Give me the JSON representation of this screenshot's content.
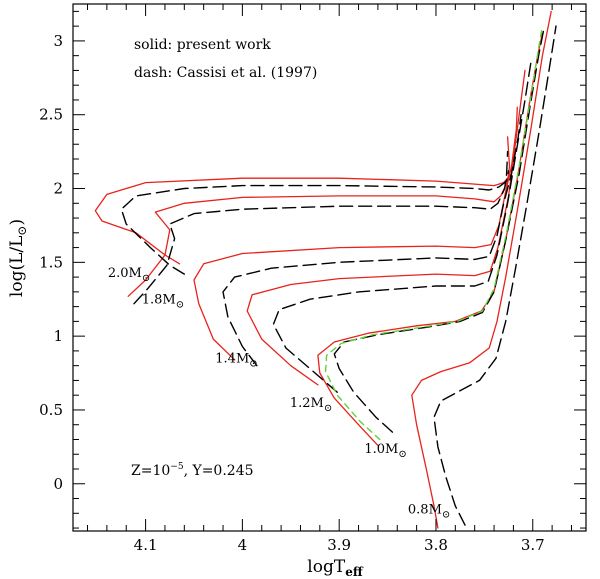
{
  "chart_data": {
    "type": "line",
    "title": "",
    "xlabel": "logT",
    "xlabel_sub": "eff",
    "ylabel": "log(L/L",
    "ylabel_sub": "⊙",
    "xlim": [
      4.175,
      3.645
    ],
    "ylim": [
      -0.32,
      3.25
    ],
    "x_reversed": true,
    "grid": false,
    "xticks": [
      {
        "value": 4.1,
        "label": "4.1"
      },
      {
        "value": 4.0,
        "label": "4"
      },
      {
        "value": 3.9,
        "label": "3.9"
      },
      {
        "value": 3.8,
        "label": "3.8"
      },
      {
        "value": 3.7,
        "label": "3.7"
      }
    ],
    "yticks": [
      {
        "value": 0,
        "label": "0"
      },
      {
        "value": 0.5,
        "label": "0.5"
      },
      {
        "value": 1,
        "label": "1"
      },
      {
        "value": 1.5,
        "label": "1.5"
      },
      {
        "value": 2,
        "label": "2"
      },
      {
        "value": 2.5,
        "label": "2.5"
      },
      {
        "value": 3,
        "label": "3"
      }
    ],
    "legend": {
      "solid": "solid: present work",
      "dash": "dash: Cassisi et al. (1997)"
    },
    "composition": "Z=10",
    "composition_exp": "−5",
    "composition_rest": ", Y=0.245",
    "series": [
      {
        "name": "2.0M (present work)",
        "style": "solid",
        "color": "#e8231c",
        "points": [
          [
            4.065,
            1.49
          ],
          [
            4.08,
            1.55
          ],
          [
            4.11,
            1.7
          ],
          [
            4.145,
            1.78
          ],
          [
            4.152,
            1.85
          ],
          [
            4.14,
            1.96
          ],
          [
            4.1,
            2.04
          ],
          [
            4.0,
            2.07
          ],
          [
            3.9,
            2.07
          ],
          [
            3.8,
            2.05
          ],
          [
            3.76,
            2.03
          ],
          [
            3.74,
            2.02
          ],
          [
            3.73,
            2.04
          ],
          [
            3.722,
            2.1
          ],
          [
            3.72,
            2.2
          ]
        ]
      },
      {
        "name": "1.8M (present work)",
        "style": "solid",
        "color": "#e8231c",
        "points": [
          [
            4.118,
            1.27
          ],
          [
            4.1,
            1.38
          ],
          [
            4.08,
            1.55
          ],
          [
            4.075,
            1.72
          ],
          [
            4.09,
            1.84
          ],
          [
            4.06,
            1.9
          ],
          [
            4.0,
            1.94
          ],
          [
            3.9,
            1.95
          ],
          [
            3.8,
            1.95
          ],
          [
            3.76,
            1.93
          ],
          [
            3.74,
            1.91
          ],
          [
            3.733,
            1.95
          ],
          [
            3.726,
            2.05
          ],
          [
            3.724,
            2.15
          ],
          [
            3.726,
            2.35
          ]
        ]
      },
      {
        "name": "1.4M (present work)",
        "style": "solid",
        "color": "#e8231c",
        "points": [
          [
            4.008,
            0.84
          ],
          [
            4.03,
            0.98
          ],
          [
            4.045,
            1.22
          ],
          [
            4.05,
            1.38
          ],
          [
            4.04,
            1.49
          ],
          [
            4.0,
            1.56
          ],
          [
            3.9,
            1.6
          ],
          [
            3.8,
            1.61
          ],
          [
            3.76,
            1.6
          ],
          [
            3.743,
            1.62
          ],
          [
            3.735,
            1.75
          ],
          [
            3.728,
            1.98
          ],
          [
            3.722,
            2.15
          ],
          [
            3.717,
            2.4
          ],
          [
            3.716,
            2.55
          ]
        ]
      },
      {
        "name": "1.2M (present work)",
        "style": "solid",
        "color": "#e8231c",
        "points": [
          [
            3.922,
            0.67
          ],
          [
            3.95,
            0.8
          ],
          [
            3.98,
            0.98
          ],
          [
            3.995,
            1.17
          ],
          [
            3.99,
            1.28
          ],
          [
            3.95,
            1.35
          ],
          [
            3.9,
            1.39
          ],
          [
            3.8,
            1.42
          ],
          [
            3.76,
            1.41
          ],
          [
            3.744,
            1.44
          ],
          [
            3.736,
            1.6
          ],
          [
            3.725,
            1.95
          ],
          [
            3.718,
            2.3
          ],
          [
            3.712,
            2.6
          ],
          [
            3.708,
            2.8
          ]
        ]
      },
      {
        "name": "1.0M (present work)",
        "style": "solid",
        "color": "#e8231c",
        "points": [
          [
            3.86,
            0.26
          ],
          [
            3.88,
            0.4
          ],
          [
            3.905,
            0.58
          ],
          [
            3.92,
            0.75
          ],
          [
            3.922,
            0.87
          ],
          [
            3.905,
            0.96
          ],
          [
            3.87,
            1.02
          ],
          [
            3.82,
            1.07
          ],
          [
            3.78,
            1.1
          ],
          [
            3.753,
            1.17
          ],
          [
            3.74,
            1.3
          ],
          [
            3.728,
            1.65
          ],
          [
            3.715,
            2.1
          ],
          [
            3.703,
            2.6
          ],
          [
            3.695,
            2.9
          ],
          [
            3.69,
            3.05
          ]
        ]
      },
      {
        "name": "0.8M (present work)",
        "style": "solid",
        "color": "#e8231c",
        "points": [
          [
            3.798,
            -0.3
          ],
          [
            3.802,
            -0.15
          ],
          [
            3.81,
            0.1
          ],
          [
            3.82,
            0.4
          ],
          [
            3.825,
            0.6
          ],
          [
            3.815,
            0.7
          ],
          [
            3.795,
            0.76
          ],
          [
            3.765,
            0.82
          ],
          [
            3.745,
            0.92
          ],
          [
            3.737,
            1.1
          ],
          [
            3.728,
            1.4
          ],
          [
            3.716,
            1.85
          ],
          [
            3.702,
            2.4
          ],
          [
            3.69,
            2.9
          ],
          [
            3.681,
            3.2
          ]
        ]
      },
      {
        "name": "2.0M (Cassisi et al. 1997)",
        "style": "dash",
        "color": "#000000",
        "points": [
          [
            4.06,
            1.42
          ],
          [
            4.075,
            1.48
          ],
          [
            4.095,
            1.6
          ],
          [
            4.12,
            1.76
          ],
          [
            4.125,
            1.86
          ],
          [
            4.11,
            1.95
          ],
          [
            4.06,
            2.0
          ],
          [
            4.0,
            2.02
          ],
          [
            3.9,
            2.02
          ],
          [
            3.8,
            2.01
          ],
          [
            3.76,
            2.0
          ],
          [
            3.745,
            1.99
          ],
          [
            3.735,
            2.01
          ],
          [
            3.727,
            2.05
          ],
          [
            3.725,
            2.12
          ]
        ]
      },
      {
        "name": "1.8M (Cassisi et al. 1997)",
        "style": "dash",
        "color": "#000000",
        "points": [
          [
            4.112,
            1.22
          ],
          [
            4.098,
            1.32
          ],
          [
            4.078,
            1.48
          ],
          [
            4.07,
            1.66
          ],
          [
            4.075,
            1.76
          ],
          [
            4.05,
            1.83
          ],
          [
            4.0,
            1.86
          ],
          [
            3.9,
            1.88
          ],
          [
            3.8,
            1.88
          ],
          [
            3.76,
            1.87
          ],
          [
            3.744,
            1.86
          ],
          [
            3.736,
            1.9
          ],
          [
            3.729,
            2.0
          ],
          [
            3.727,
            2.1
          ],
          [
            3.726,
            2.25
          ]
        ]
      },
      {
        "name": "1.4M (Cassisi et al. 1997)",
        "style": "dash",
        "color": "#000000",
        "points": [
          [
            3.985,
            0.8
          ],
          [
            4.0,
            0.93
          ],
          [
            4.015,
            1.13
          ],
          [
            4.02,
            1.3
          ],
          [
            4.008,
            1.4
          ],
          [
            3.97,
            1.46
          ],
          [
            3.9,
            1.5
          ],
          [
            3.8,
            1.53
          ],
          [
            3.76,
            1.52
          ],
          [
            3.745,
            1.54
          ],
          [
            3.737,
            1.68
          ],
          [
            3.73,
            1.9
          ],
          [
            3.722,
            2.1
          ],
          [
            3.715,
            2.35
          ],
          [
            3.712,
            2.5
          ]
        ]
      },
      {
        "name": "1.2M (Cassisi et al. 1997)",
        "style": "dash",
        "color": "#000000",
        "points": [
          [
            3.902,
            0.62
          ],
          [
            3.925,
            0.75
          ],
          [
            3.955,
            0.92
          ],
          [
            3.968,
            1.08
          ],
          [
            3.962,
            1.18
          ],
          [
            3.93,
            1.25
          ],
          [
            3.88,
            1.3
          ],
          [
            3.8,
            1.34
          ],
          [
            3.76,
            1.34
          ],
          [
            3.746,
            1.37
          ],
          [
            3.737,
            1.55
          ],
          [
            3.726,
            1.9
          ],
          [
            3.717,
            2.25
          ],
          [
            3.708,
            2.6
          ],
          [
            3.702,
            2.85
          ]
        ]
      },
      {
        "name": "1.0M (Cassisi et al. 1997)",
        "style": "dash",
        "color": "#000000",
        "points": [
          [
            3.845,
            0.35
          ],
          [
            3.862,
            0.45
          ],
          [
            3.885,
            0.62
          ],
          [
            3.9,
            0.78
          ],
          [
            3.905,
            0.88
          ],
          [
            3.895,
            0.96
          ],
          [
            3.86,
            1.01
          ],
          [
            3.81,
            1.06
          ],
          [
            3.775,
            1.1
          ],
          [
            3.752,
            1.16
          ],
          [
            3.74,
            1.3
          ],
          [
            3.728,
            1.65
          ],
          [
            3.714,
            2.1
          ],
          [
            3.703,
            2.55
          ],
          [
            3.694,
            2.9
          ],
          [
            3.688,
            3.1
          ]
        ]
      },
      {
        "name": "0.8M (Cassisi et al. 1997)",
        "style": "dash",
        "color": "#000000",
        "points": [
          [
            3.77,
            -0.28
          ],
          [
            3.78,
            -0.15
          ],
          [
            3.79,
            0.05
          ],
          [
            3.798,
            0.25
          ],
          [
            3.802,
            0.45
          ],
          [
            3.795,
            0.56
          ],
          [
            3.778,
            0.62
          ],
          [
            3.755,
            0.7
          ],
          [
            3.738,
            0.85
          ],
          [
            3.728,
            1.1
          ],
          [
            3.718,
            1.45
          ],
          [
            3.706,
            1.9
          ],
          [
            3.693,
            2.4
          ],
          [
            3.682,
            2.85
          ],
          [
            3.676,
            3.1
          ]
        ]
      },
      {
        "name": "1.0M (comparison)",
        "style": "dash",
        "color": "#5ed43a",
        "points": [
          [
            3.858,
            0.3
          ],
          [
            3.878,
            0.42
          ],
          [
            3.902,
            0.6
          ],
          [
            3.914,
            0.76
          ],
          [
            3.913,
            0.87
          ],
          [
            3.898,
            0.95
          ],
          [
            3.865,
            1.01
          ],
          [
            3.815,
            1.06
          ],
          [
            3.778,
            1.1
          ],
          [
            3.752,
            1.17
          ],
          [
            3.74,
            1.32
          ],
          [
            3.727,
            1.7
          ],
          [
            3.714,
            2.15
          ],
          [
            3.702,
            2.62
          ],
          [
            3.694,
            2.95
          ],
          [
            3.69,
            3.1
          ]
        ]
      }
    ],
    "mass_labels": [
      {
        "x": 4.139,
        "y": 1.4,
        "text": "2.0M",
        "sub": "⊙"
      },
      {
        "x": 4.104,
        "y": 1.22,
        "text": "1.8M",
        "sub": "⊙"
      },
      {
        "x": 4.028,
        "y": 0.82,
        "text": "1.4M",
        "sub": "⊙"
      },
      {
        "x": 3.951,
        "y": 0.52,
        "text": "1.2M",
        "sub": "⊙"
      },
      {
        "x": 3.874,
        "y": 0.21,
        "text": "1.0M",
        "sub": "⊙"
      },
      {
        "x": 3.829,
        "y": -0.2,
        "text": "0.8M",
        "sub": "⊙"
      }
    ]
  }
}
